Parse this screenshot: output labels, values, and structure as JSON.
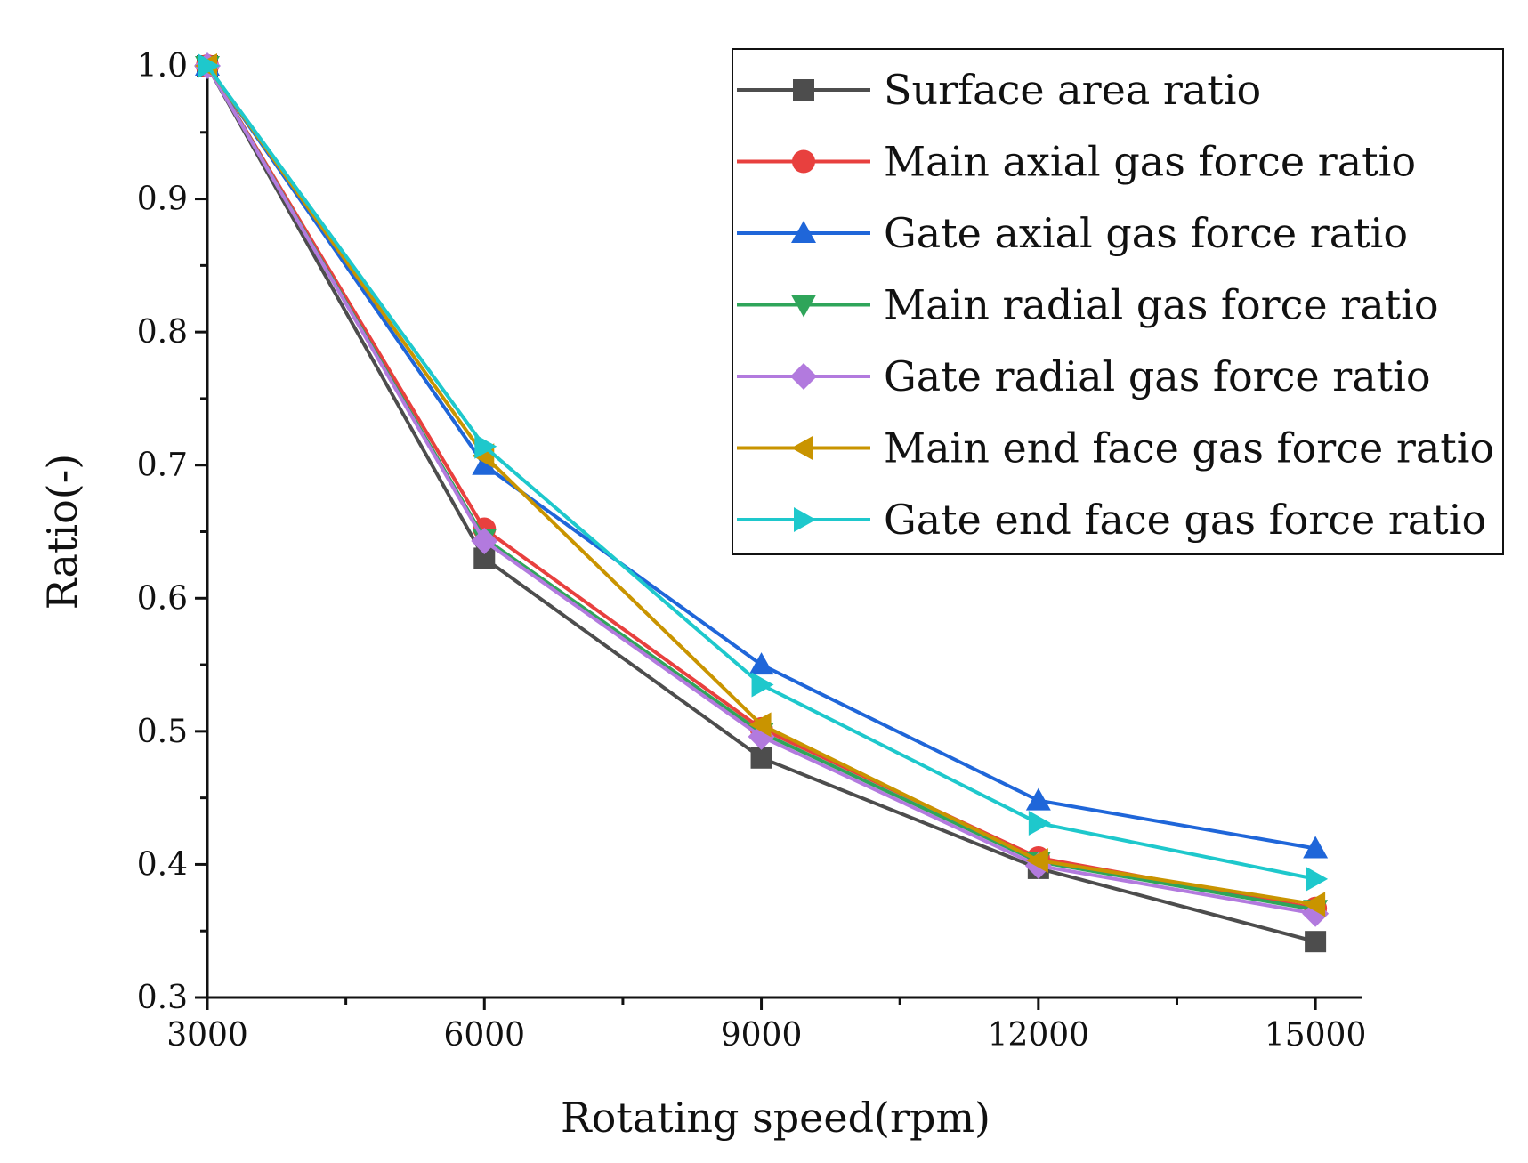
{
  "chart_data": {
    "type": "line",
    "title": "",
    "xlabel": "Rotating speed(rpm)",
    "ylabel": "Ratio(-)",
    "x": [
      3000,
      6000,
      9000,
      12000,
      15000
    ],
    "xlim": [
      3000,
      15500
    ],
    "ylim": [
      0.3,
      1.0
    ],
    "xticks": [
      "3000",
      "6000",
      "9000",
      "12000",
      "15000"
    ],
    "yticks": [
      "0.3",
      "0.4",
      "0.5",
      "0.6",
      "0.7",
      "0.8",
      "0.9",
      "1.0"
    ],
    "legend_position": "top-right",
    "grid": false,
    "series": [
      {
        "name": "Surface area ratio",
        "color": "#4d4d4d",
        "marker": "square",
        "values": [
          1.0,
          0.63,
          0.48,
          0.397,
          0.342
        ]
      },
      {
        "name": "Main axial gas force ratio",
        "color": "#e8403e",
        "marker": "circle",
        "values": [
          1.0,
          0.652,
          0.502,
          0.405,
          0.367
        ]
      },
      {
        "name": "Gate axial gas force ratio",
        "color": "#1f66d9",
        "marker": "triangle-up",
        "values": [
          1.0,
          0.7,
          0.55,
          0.448,
          0.412
        ]
      },
      {
        "name": "Main radial gas force ratio",
        "color": "#2fa55a",
        "marker": "triangle-down",
        "values": [
          1.0,
          0.645,
          0.499,
          0.402,
          0.366
        ]
      },
      {
        "name": "Gate radial gas force ratio",
        "color": "#b27ade",
        "marker": "diamond",
        "values": [
          1.0,
          0.643,
          0.496,
          0.399,
          0.363
        ]
      },
      {
        "name": "Main end face gas force ratio",
        "color": "#c99400",
        "marker": "triangle-left",
        "values": [
          1.0,
          0.707,
          0.505,
          0.403,
          0.37
        ]
      },
      {
        "name": "Gate end face gas force ratio",
        "color": "#1ec8cc",
        "marker": "triangle-right",
        "values": [
          1.0,
          0.714,
          0.535,
          0.431,
          0.389
        ]
      }
    ]
  }
}
